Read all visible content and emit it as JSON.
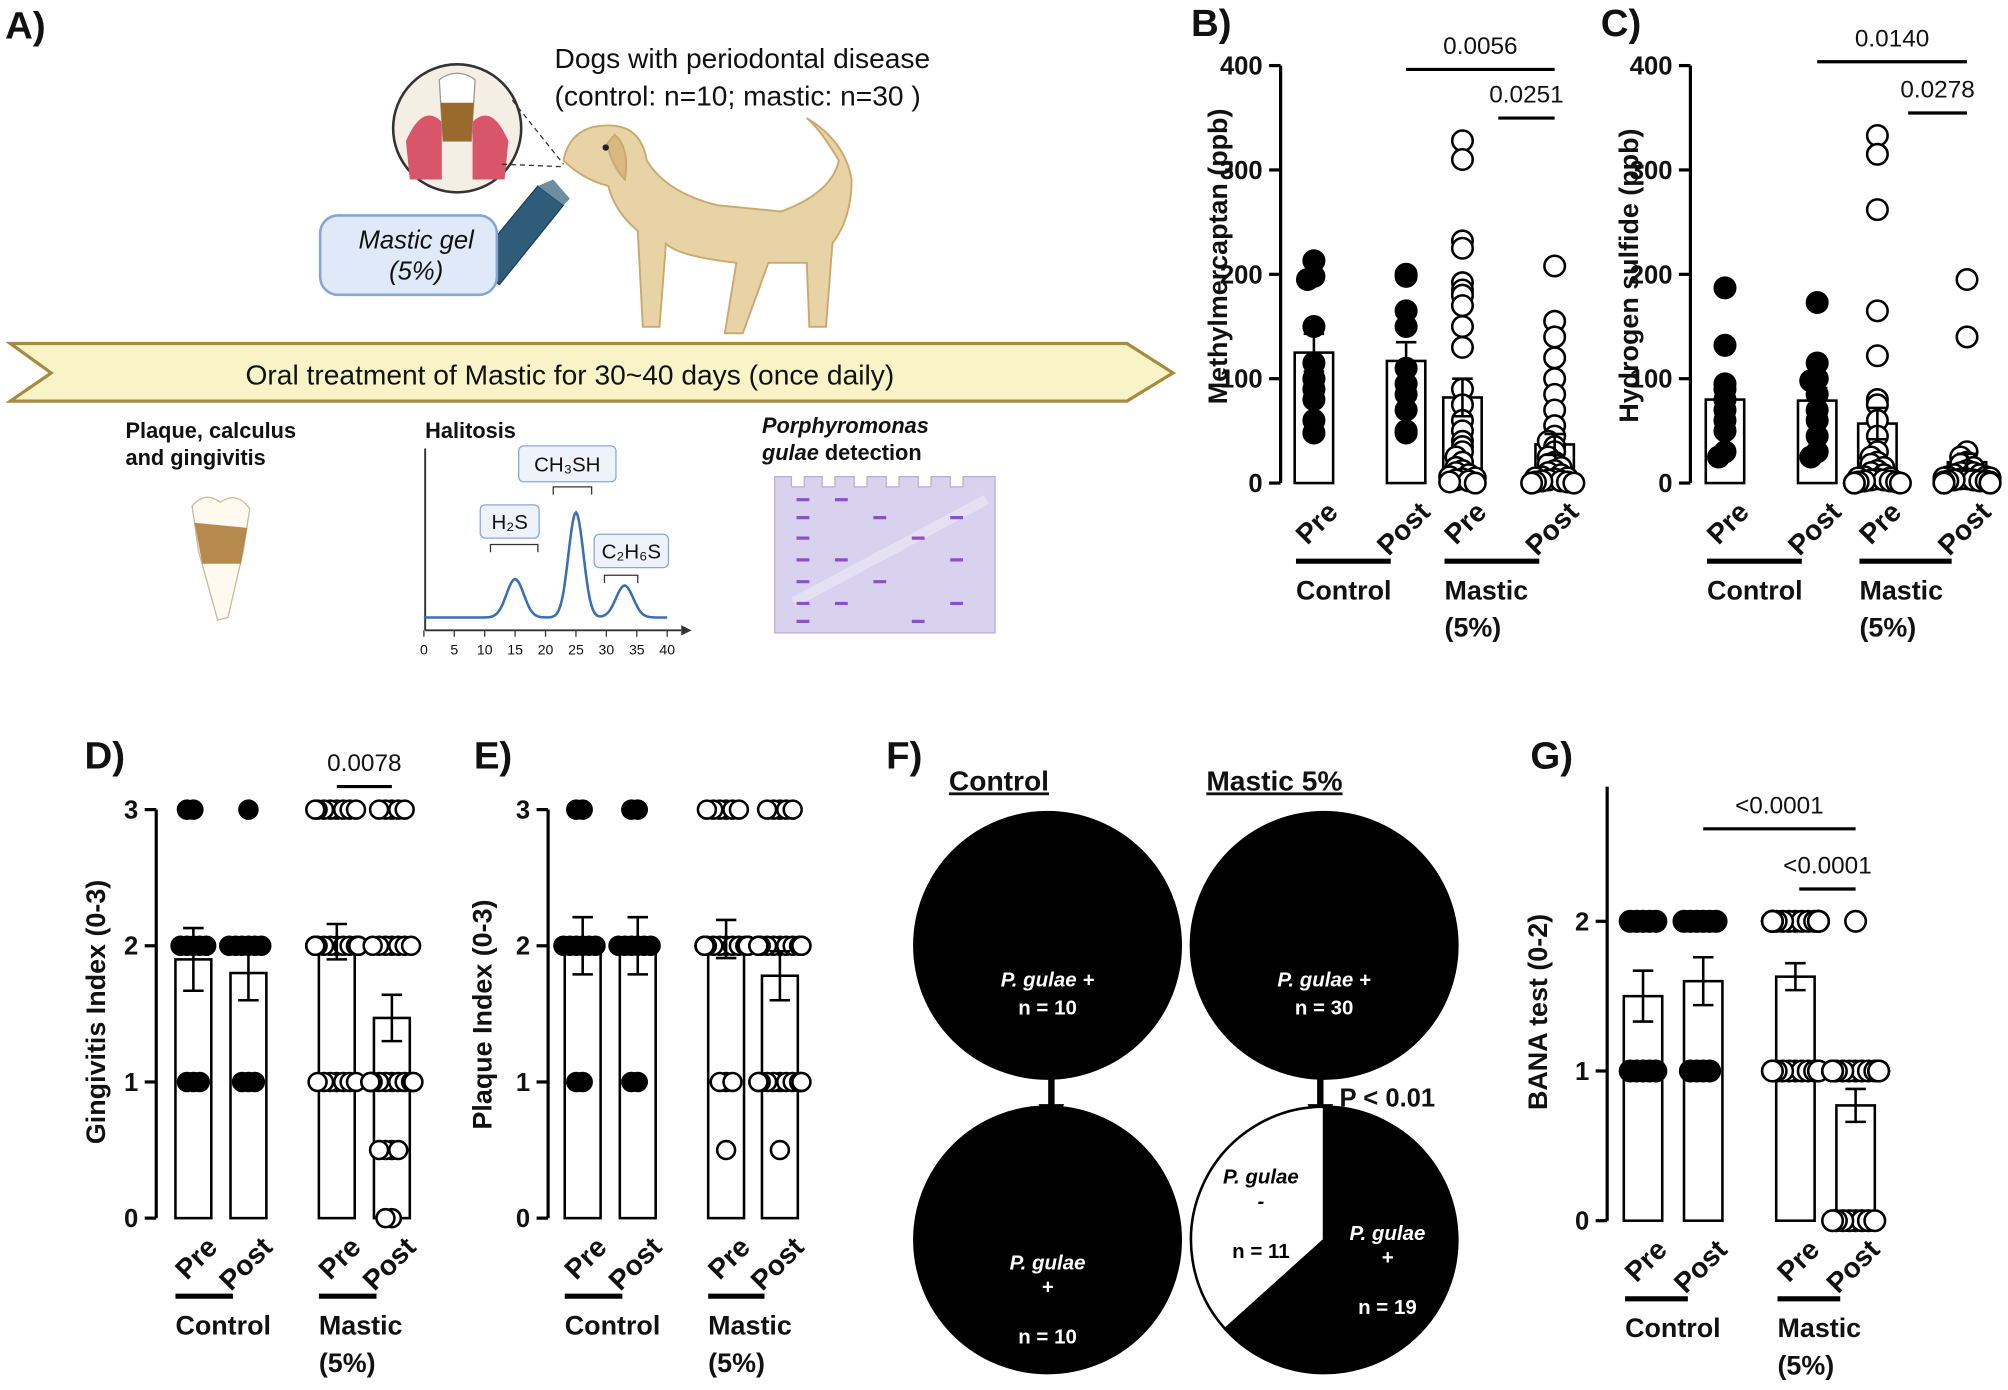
{
  "diagram": {
    "panel": "A)",
    "dogs_title": "Dogs with periodontal disease",
    "dogs_groups": "(control: n=10; mastic: n=30 )",
    "gel": "Mastic gel",
    "gel_conc": "(5%)",
    "banner": "Oral treatment of Mastic for 30~40 days (once daily)",
    "plaque": [
      "Plaque, calculus",
      "and gingivitis"
    ],
    "halitosis": "Halitosis",
    "peaks": [
      "H₂S",
      "CH₃SH",
      "C₂H₆S"
    ],
    "chromatogram_ticks": [
      0,
      5,
      10,
      15,
      20,
      25,
      30,
      35,
      40
    ],
    "gel_label": [
      "Porphyromonas",
      "gulae",
      "detection"
    ]
  },
  "chart_data": [
    {
      "type": "bar",
      "panel": "B)",
      "ylabel": "Methylmercaptan (ppb)",
      "categories": [
        "Pre",
        "Post",
        "Pre",
        "Post"
      ],
      "groups": [
        "Control",
        "Mastic (5%)"
      ],
      "values": [
        125,
        117,
        82,
        37
      ],
      "errors": [
        18,
        18,
        18,
        10
      ],
      "points": [
        [
          213,
          198,
          195,
          150,
          115,
          100,
          90,
          80,
          60,
          48
        ],
        [
          200,
          198,
          165,
          150,
          110,
          95,
          85,
          70,
          50,
          48
        ],
        [
          328,
          310,
          232,
          225,
          192,
          185,
          180,
          170,
          150,
          130,
          90,
          75,
          60,
          50,
          40,
          35,
          30,
          25,
          20,
          15,
          12,
          10,
          8,
          6,
          5,
          4,
          3,
          2,
          1,
          0
        ],
        [
          208,
          155,
          140,
          120,
          100,
          85,
          70,
          55,
          45,
          40,
          35,
          30,
          25,
          20,
          18,
          15,
          12,
          10,
          8,
          6,
          5,
          5,
          4,
          3,
          2,
          2,
          1,
          1,
          0,
          0
        ]
      ],
      "point_colors": [
        "#000000",
        "#000000",
        "#ffffff",
        "#ffffff"
      ],
      "ylim": [
        0,
        400
      ],
      "yticks": [
        0,
        100,
        200,
        300,
        400
      ],
      "annotations": [
        "0.0056",
        "0.0251"
      ]
    },
    {
      "type": "bar",
      "panel": "C)",
      "ylabel": "Hydrogen sulfide (ppb)",
      "categories": [
        "Pre",
        "Post",
        "Pre",
        "Post"
      ],
      "groups": [
        "Control",
        "Mastic (5%)"
      ],
      "values": [
        80,
        79,
        57,
        20
      ],
      "errors": [
        12,
        12,
        15,
        8
      ],
      "points": [
        [
          187,
          132,
          95,
          90,
          80,
          70,
          60,
          50,
          30,
          25
        ],
        [
          173,
          115,
          100,
          98,
          85,
          70,
          60,
          45,
          30,
          25
        ],
        [
          333,
          315,
          262,
          165,
          122,
          80,
          75,
          60,
          45,
          30,
          25,
          20,
          18,
          15,
          12,
          10,
          8,
          6,
          5,
          5,
          4,
          3,
          3,
          2,
          2,
          1,
          1,
          0,
          0,
          0
        ],
        [
          195,
          140,
          30,
          25,
          20,
          18,
          15,
          12,
          10,
          10,
          8,
          8,
          6,
          6,
          5,
          5,
          4,
          4,
          3,
          3,
          2,
          2,
          2,
          1,
          1,
          1,
          0,
          0,
          0,
          0
        ]
      ],
      "point_colors": [
        "#000000",
        "#000000",
        "#ffffff",
        "#ffffff"
      ],
      "ylim": [
        0,
        400
      ],
      "yticks": [
        0,
        100,
        200,
        300,
        400
      ],
      "annotations": [
        "0.0140",
        "0.0278"
      ]
    },
    {
      "type": "bar",
      "panel": "D)",
      "ylabel": "Gingivitis Index (0-3)",
      "categories": [
        "Pre",
        "Post",
        "Pre",
        "Post"
      ],
      "groups": [
        "Control",
        "Mastic (5%)"
      ],
      "values": [
        1.9,
        1.8,
        2.03,
        1.47
      ],
      "errors": [
        0.23,
        0.2,
        0.13,
        0.17
      ],
      "points": [
        [
          3,
          3,
          2,
          2,
          2,
          2,
          2,
          1,
          1,
          1
        ],
        [
          3,
          2,
          2,
          2,
          2,
          2,
          2,
          1,
          1,
          1
        ],
        [
          3,
          3,
          3,
          3,
          3,
          3,
          3,
          3,
          2,
          2,
          2,
          2,
          2,
          2,
          2,
          2,
          2,
          2,
          2,
          2,
          2,
          2,
          2,
          1,
          1,
          1,
          1,
          1,
          1,
          1
        ],
        [
          3,
          3,
          3,
          3,
          3,
          2,
          2,
          2,
          2,
          2,
          2,
          2,
          1,
          1,
          1,
          1,
          1,
          1,
          1,
          1,
          1,
          1,
          1,
          1,
          0.5,
          0.5,
          0.5,
          0.5,
          0,
          0
        ]
      ],
      "point_colors": [
        "#000000",
        "#000000",
        "#ffffff",
        "#ffffff"
      ],
      "ylim": [
        0,
        3
      ],
      "yticks": [
        0,
        1,
        2,
        3
      ],
      "annotations": [
        "0.0078"
      ]
    },
    {
      "type": "bar",
      "panel": "E)",
      "ylabel": "Plaque Index (0-3)",
      "categories": [
        "Pre",
        "Post",
        "Pre",
        "Post"
      ],
      "groups": [
        "Control",
        "Mastic (5%)"
      ],
      "values": [
        2.0,
        2.0,
        2.05,
        1.78
      ],
      "errors": [
        0.21,
        0.21,
        0.14,
        0.18
      ],
      "points": [
        [
          3,
          3,
          2,
          2,
          2,
          2,
          2,
          2,
          1,
          1
        ],
        [
          3,
          3,
          2,
          2,
          2,
          2,
          2,
          2,
          1,
          1
        ],
        [
          3,
          3,
          3,
          3,
          3,
          3,
          2,
          2,
          2,
          2,
          2,
          2,
          2,
          2,
          2,
          2,
          2,
          2,
          2,
          2,
          2,
          2,
          2,
          2,
          2,
          2,
          1,
          1,
          1,
          0.5
        ],
        [
          3,
          3,
          3,
          3,
          3,
          2,
          2,
          2,
          2,
          2,
          2,
          2,
          2,
          2,
          2,
          2,
          2,
          2,
          1,
          1,
          1,
          1,
          1,
          1,
          1,
          1,
          1,
          1,
          1,
          0.5
        ]
      ],
      "point_colors": [
        "#000000",
        "#000000",
        "#ffffff",
        "#ffffff"
      ],
      "ylim": [
        0,
        3
      ],
      "yticks": [
        0,
        1,
        2,
        3
      ],
      "annotations": []
    },
    {
      "type": "pie",
      "panel": "F)",
      "titles": [
        "Control",
        "Mastic 5%"
      ],
      "pies": [
        {
          "slices": [
            {
              "name": "P. gulae +",
              "value": 10,
              "label": "n = 10",
              "color": "#000000"
            }
          ]
        },
        {
          "slices": [
            {
              "name": "P. gulae +",
              "value": 30,
              "label": "n = 30",
              "color": "#000000"
            }
          ]
        },
        {
          "slices": [
            {
              "name": "P. gulae +",
              "value": 10,
              "label": "n = 10",
              "color": "#000000"
            }
          ]
        },
        {
          "slices": [
            {
              "name": "P. gulae -",
              "value": 11,
              "label": "n = 11",
              "color": "#ffffff"
            },
            {
              "name": "P. gulae +",
              "value": 19,
              "label": "n = 19",
              "color": "#000000"
            }
          ]
        }
      ],
      "annotation": "P < 0.01"
    },
    {
      "type": "bar",
      "panel": "G)",
      "ylabel": "BANA test (0-2)",
      "categories": [
        "Pre",
        "Post",
        "Pre",
        "Post"
      ],
      "groups": [
        "Control",
        "Mastic (5%)"
      ],
      "values": [
        1.5,
        1.6,
        1.63,
        0.77
      ],
      "errors": [
        0.17,
        0.16,
        0.09,
        0.11
      ],
      "points": [
        [
          2,
          2,
          2,
          2,
          2,
          1,
          1,
          1,
          1,
          1
        ],
        [
          2,
          2,
          2,
          2,
          2,
          2,
          1,
          1,
          1,
          1
        ],
        [
          2,
          2,
          2,
          2,
          2,
          2,
          2,
          2,
          2,
          2,
          2,
          2,
          2,
          2,
          2,
          2,
          2,
          2,
          2,
          1,
          1,
          1,
          1,
          1,
          1,
          1,
          1,
          1,
          1,
          1
        ],
        [
          2,
          1,
          1,
          1,
          1,
          1,
          1,
          1,
          1,
          1,
          1,
          1,
          1,
          1,
          1,
          1,
          1,
          1,
          1,
          1,
          1,
          1,
          0,
          0,
          0,
          0,
          0,
          0,
          0,
          0
        ]
      ],
      "point_colors": [
        "#000000",
        "#000000",
        "#ffffff",
        "#ffffff"
      ],
      "ylim": [
        0,
        2.9
      ],
      "yticks": [
        0,
        1,
        2
      ],
      "annotations": [
        "<0.0001",
        "<0.0001"
      ]
    }
  ]
}
